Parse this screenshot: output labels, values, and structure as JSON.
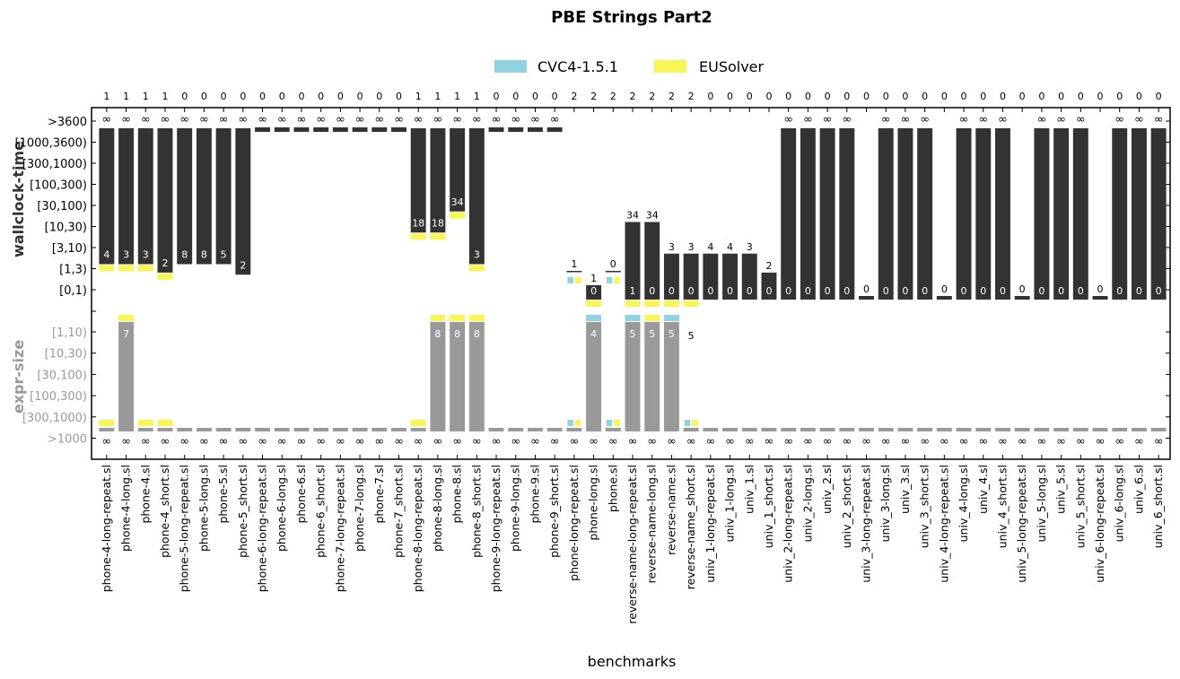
{
  "chart_data": {
    "type": "bar",
    "title": "PBE Strings Part2",
    "xlabel": "benchmarks",
    "colors": {
      "time_bar": "#333333",
      "size_bar": "#999999",
      "cvc4": "#8fd3e1",
      "eusolver": "#f8f655",
      "axis": "#000000",
      "size_tick_text": "#999999"
    },
    "legend": [
      {
        "name": "CVC4-1.5.1",
        "color": "#8fd3e1"
      },
      {
        "name": "EUSolver",
        "color": "#f8f655"
      }
    ],
    "top_panel": {
      "ylabel": "wallclock-time",
      "tick_labels": [
        "[0,1)",
        "[1,3)",
        "[3,10)",
        "[10,30)",
        "[30,100)",
        "[100,300)",
        "[300,1000)",
        "[1000,3600)",
        ">3600"
      ]
    },
    "bottom_panel": {
      "ylabel": "expr-size",
      "tick_labels": [
        "[1,10)",
        "[10,30)",
        "[30,100)",
        "[100,300)",
        "[300,1000)",
        ">1000"
      ]
    },
    "infinity_symbol": "∞",
    "categories": [
      "phone-4-long-repeat.sl",
      "phone-4-long.sl",
      "phone-4.sl",
      "phone-4_short.sl",
      "phone-5-long-repeat.sl",
      "phone-5-long.sl",
      "phone-5.sl",
      "phone-5_short.sl",
      "phone-6-long-repeat.sl",
      "phone-6-long.sl",
      "phone-6.sl",
      "phone-6_short.sl",
      "phone-7-long-repeat.sl",
      "phone-7-long.sl",
      "phone-7.sl",
      "phone-7_short.sl",
      "phone-8-long-repeat.sl",
      "phone-8-long.sl",
      "phone-8.sl",
      "phone-8_short.sl",
      "phone-9-long-repeat.sl",
      "phone-9-long.sl",
      "phone-9.sl",
      "phone-9_short.sl",
      "phone-long-repeat.sl",
      "phone-long.sl",
      "phone.sl",
      "reverse-name-long-repeat.sl",
      "reverse-name-long.sl",
      "reverse-name.sl",
      "reverse-name_short.sl",
      "univ_1-long-repeat.sl",
      "univ_1-long.sl",
      "univ_1.sl",
      "univ_1_short.sl",
      "univ_2-long-repeat.sl",
      "univ_2-long.sl",
      "univ_2.sl",
      "univ_2_short.sl",
      "univ_3-long-repeat.sl",
      "univ_3-long.sl",
      "univ_3.sl",
      "univ_3_short.sl",
      "univ_4-long-repeat.sl",
      "univ_4-long.sl",
      "univ_4.sl",
      "univ_4_short.sl",
      "univ_5-long-repeat.sl",
      "univ_5-long.sl",
      "univ_5.sl",
      "univ_5_short.sl",
      "univ_6-long-repeat.sl",
      "univ_6-long.sl",
      "univ_6.sl",
      "univ_6_short.sl"
    ],
    "solved_counts": [
      1,
      1,
      1,
      1,
      0,
      0,
      0,
      0,
      0,
      0,
      0,
      0,
      0,
      0,
      0,
      0,
      1,
      1,
      1,
      1,
      0,
      0,
      0,
      0,
      2,
      2,
      2,
      2,
      2,
      2,
      2,
      0,
      0,
      0,
      0,
      0,
      0,
      0,
      0,
      0,
      0,
      0,
      0,
      0,
      0,
      0,
      0,
      0,
      0,
      0,
      0,
      0,
      0,
      0,
      0
    ],
    "time_bins": [
      1,
      1,
      1,
      0.6,
      1,
      1,
      1,
      0.5,
      8,
      8,
      8,
      8,
      8,
      8,
      8,
      8,
      2.5,
      2.5,
      3.5,
      1,
      8,
      8,
      8,
      8,
      -1,
      0,
      -1,
      3,
      3,
      1.5,
      1.5,
      1.5,
      1.5,
      1.5,
      0.6,
      8,
      8,
      8,
      8,
      -0.1,
      8,
      8,
      8,
      -0.1,
      8,
      8,
      8,
      -0.1,
      8,
      8,
      8,
      -0.1,
      8,
      8,
      8
    ],
    "time_labels": [
      "4",
      "3",
      "3",
      "2",
      "8",
      "8",
      "5",
      "2",
      "",
      "",
      "",
      "",
      "",
      "",
      "",
      "",
      "18",
      "18",
      "34",
      "3",
      "",
      "",
      "",
      "",
      "1",
      "1",
      "0",
      "34",
      "34",
      "3",
      "3",
      "4",
      "4",
      "3",
      "2",
      "",
      "",
      "",
      "",
      "0",
      "",
      "",
      "",
      "0",
      "",
      "",
      "",
      "0",
      "",
      "",
      "",
      "0",
      "",
      "",
      ""
    ],
    "time_label_inside": [
      true,
      true,
      true,
      true,
      true,
      true,
      true,
      true,
      false,
      false,
      false,
      false,
      false,
      false,
      false,
      false,
      true,
      true,
      true,
      true,
      false,
      false,
      false,
      false,
      false,
      false,
      false,
      false,
      false,
      false,
      false,
      false,
      false,
      false,
      false,
      false,
      false,
      false,
      false,
      false,
      false,
      false,
      false,
      false,
      false,
      false,
      false,
      false,
      false,
      false,
      false,
      false,
      false,
      false,
      false
    ],
    "time_label_zero": [
      "",
      "",
      "",
      "",
      "",
      "",
      "",
      "",
      "",
      "",
      "",
      "",
      "",
      "",
      "",
      "",
      "",
      "",
      "",
      "",
      "",
      "",
      "",
      "",
      "",
      "0",
      "",
      "1",
      "0",
      "0",
      "0",
      "0",
      "0",
      "0",
      "0",
      "0",
      "0",
      "0",
      "0",
      "",
      "0",
      "0",
      "0",
      "",
      "0",
      "0",
      "0",
      "",
      "0",
      "0",
      "0",
      "",
      "0",
      "0",
      "0"
    ],
    "time_infinity": [
      true,
      true,
      true,
      true,
      true,
      true,
      true,
      true,
      true,
      true,
      true,
      true,
      true,
      true,
      true,
      true,
      true,
      true,
      true,
      true,
      true,
      true,
      true,
      true,
      false,
      false,
      false,
      false,
      false,
      false,
      false,
      false,
      false,
      false,
      false,
      true,
      true,
      true,
      true,
      false,
      true,
      true,
      true,
      false,
      true,
      true,
      true,
      false,
      true,
      true,
      true,
      false,
      true,
      true,
      true
    ],
    "time_winner": [
      "eusolver",
      "eusolver",
      "eusolver",
      "eusolver",
      "",
      "",
      "",
      "",
      "",
      "",
      "",
      "",
      "",
      "",
      "",
      "",
      "eusolver",
      "eusolver",
      "eusolver",
      "eusolver",
      "",
      "",
      "",
      "",
      "both",
      "eusolver",
      "both",
      "eusolver",
      "eusolver",
      "eusolver",
      "eusolver",
      "",
      "",
      "",
      "",
      "",
      "",
      "",
      "",
      "",
      "",
      "",
      "",
      "",
      "",
      "",
      "",
      "",
      "",
      "",
      "",
      "",
      "",
      "",
      ""
    ],
    "size_bins": [
      -1,
      0,
      -1,
      -1,
      -1,
      -1,
      -1,
      -1,
      -1,
      -1,
      -1,
      -1,
      -1,
      -1,
      -1,
      -1,
      -1,
      0,
      0,
      0,
      -1,
      -1,
      -1,
      -1,
      -1,
      0,
      -1,
      0,
      0,
      0,
      -1,
      -1,
      -1,
      -1,
      -1,
      -1,
      -1,
      -1,
      -1,
      -1,
      -1,
      -1,
      -1,
      -1,
      -1,
      -1,
      -1,
      -1,
      -1,
      -1,
      -1,
      -1,
      -1,
      -1,
      -1
    ],
    "size_labels": [
      "",
      "7",
      "",
      "",
      "",
      "",
      "",
      "",
      "",
      "",
      "",
      "",
      "",
      "",
      "",
      "",
      "",
      "8",
      "8",
      "8",
      "",
      "",
      "",
      "",
      "",
      "4",
      "",
      "5",
      "5",
      "5",
      "5",
      "",
      "",
      "",
      "",
      "",
      "",
      "",
      "",
      "",
      "",
      "",
      "",
      "",
      "",
      "",
      "",
      "",
      "",
      "",
      "",
      "",
      "",
      "",
      ""
    ],
    "size_winner": [
      "eusolver",
      "eusolver",
      "eusolver",
      "eusolver",
      "",
      "",
      "",
      "",
      "",
      "",
      "",
      "",
      "",
      "",
      "",
      "",
      "eusolver",
      "eusolver",
      "eusolver",
      "eusolver",
      "",
      "",
      "",
      "",
      "both",
      "cvc4",
      "both",
      "cvc4",
      "eusolver",
      "cvc4",
      "both",
      "",
      "",
      "",
      "",
      "",
      "",
      "",
      "",
      "",
      "",
      "",
      "",
      "",
      "",
      "",
      "",
      "",
      "",
      "",
      "",
      "",
      "",
      "",
      ""
    ]
  }
}
